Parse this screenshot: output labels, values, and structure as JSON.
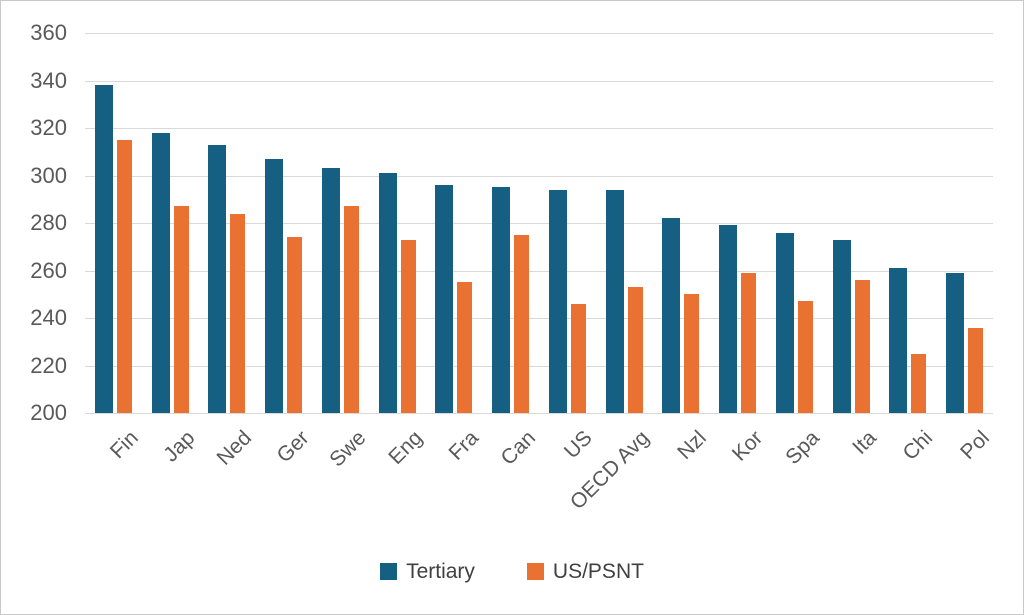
{
  "chart_data": {
    "type": "bar",
    "title": "",
    "xlabel": "",
    "ylabel": "",
    "categories": [
      "Fin",
      "Jap",
      "Ned",
      "Ger",
      "Swe",
      "Eng",
      "Fra",
      "Can",
      "US",
      "OECD Avg",
      "Nzl",
      "Kor",
      "Spa",
      "Ita",
      "Chi",
      "Pol"
    ],
    "series": [
      {
        "name": "Tertiary",
        "color": "#156082",
        "values": [
          338,
          318,
          313,
          307,
          303,
          301,
          296,
          295,
          294,
          294,
          282,
          279,
          276,
          273,
          261,
          259
        ]
      },
      {
        "name": "US/PSNT",
        "color": "#E97132",
        "values": [
          315,
          287,
          284,
          274,
          287,
          273,
          255,
          275,
          246,
          253,
          250,
          259,
          247,
          256,
          225,
          236
        ]
      }
    ],
    "ylim": [
      200,
      360
    ],
    "ytick_step": 20,
    "grid": true,
    "legend_position": "bottom"
  },
  "colors": {
    "gridline": "#d9d9d9",
    "axis_text": "#595959",
    "legend_text": "#404040",
    "border": "#c9c9c9",
    "background": "#ffffff"
  }
}
